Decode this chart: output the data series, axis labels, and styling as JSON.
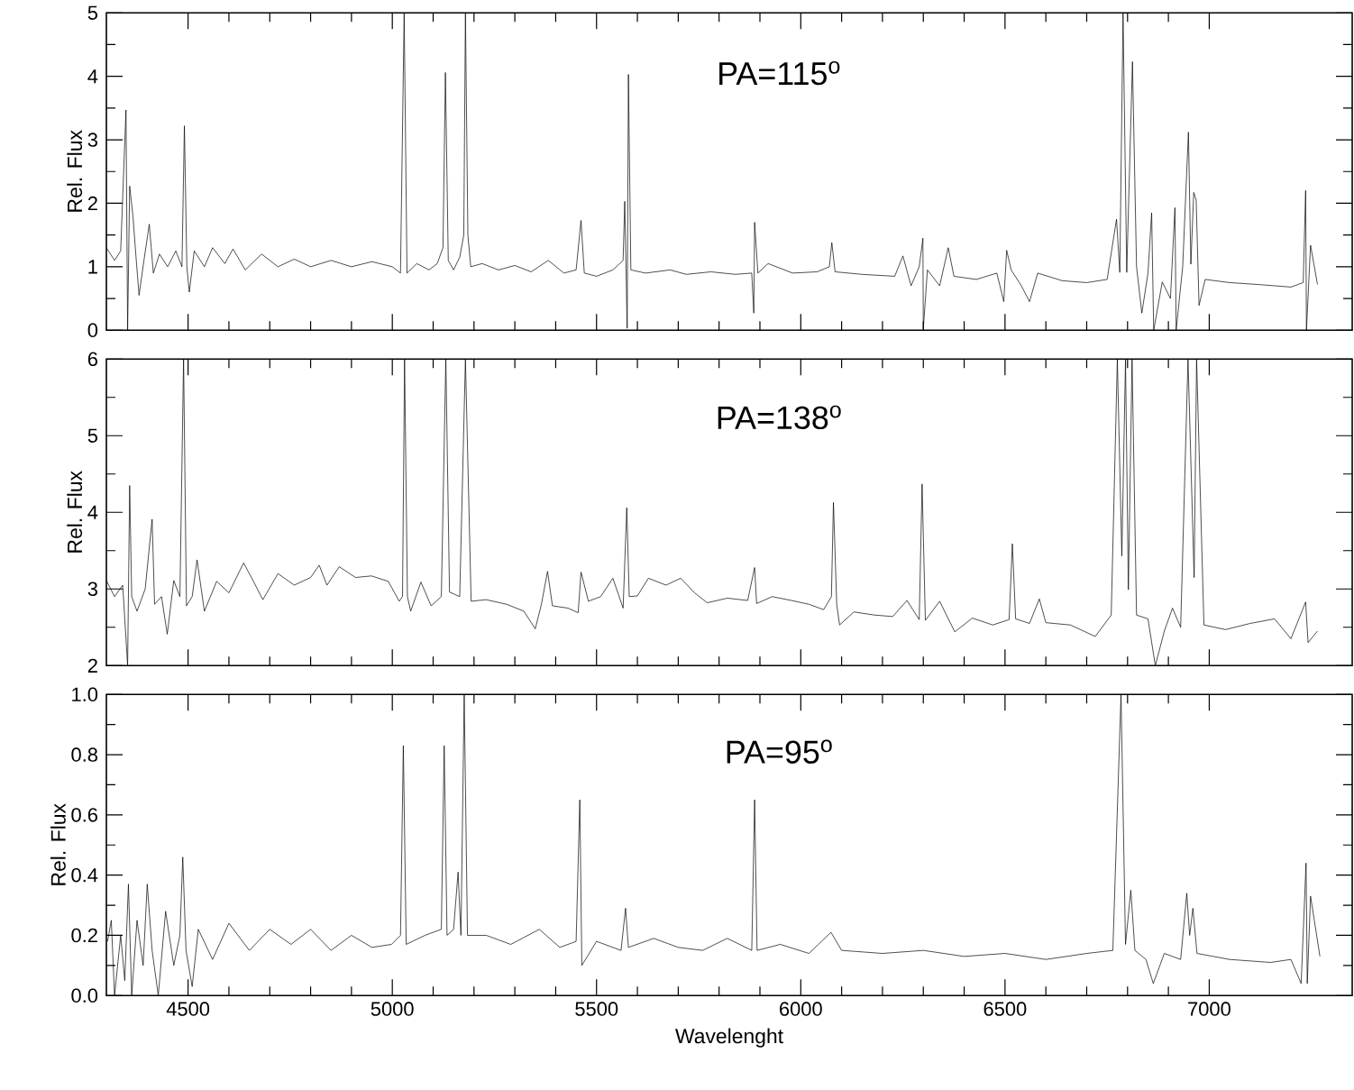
{
  "chart_data": [
    {
      "type": "line",
      "ylabel": "Rel. Flux",
      "annotations": [
        "PA=115$^{o}$"
      ],
      "color": "#000000",
      "xlim": [
        4300,
        7350
      ],
      "xticks": [
        4500,
        5000,
        5500,
        6000,
        6500,
        7000
      ],
      "ylim": [
        0,
        5
      ],
      "yticks": [
        0,
        1,
        2,
        3,
        4,
        5
      ],
      "tick_labels": "y",
      "x": [
        4300,
        4320,
        4335,
        4348,
        4352,
        4357,
        4365,
        4372,
        4380,
        4392,
        4405,
        4415,
        4430,
        4450,
        4470,
        4485,
        4491,
        4497,
        4503,
        4515,
        4540,
        4560,
        4590,
        4610,
        4640,
        4680,
        4720,
        4760,
        4800,
        4850,
        4900,
        4950,
        5000,
        5020,
        5029,
        5036,
        5060,
        5090,
        5110,
        5124,
        5130,
        5137,
        5150,
        5165,
        5175,
        5179,
        5185,
        5192,
        5220,
        5260,
        5300,
        5340,
        5382,
        5420,
        5450,
        5462,
        5470,
        5500,
        5540,
        5565,
        5569,
        5575,
        5578,
        5584,
        5620,
        5680,
        5720,
        5780,
        5840,
        5880,
        5885,
        5887,
        5895,
        5920,
        5980,
        6040,
        6070,
        6076,
        6084,
        6150,
        6230,
        6250,
        6270,
        6290,
        6299,
        6300,
        6310,
        6340,
        6361,
        6375,
        6430,
        6480,
        6497,
        6504,
        6515,
        6540,
        6560,
        6580,
        6640,
        6700,
        6750,
        6773,
        6781,
        6789,
        6798,
        6812,
        6822,
        6835,
        6850,
        6859,
        6864,
        6885,
        6905,
        6916,
        6919,
        6935,
        6949,
        6955,
        6962,
        6968,
        6975,
        6990,
        7050,
        7120,
        7200,
        7230,
        7236,
        7238,
        7248,
        7265
      ],
      "values": [
        1.3,
        1.1,
        1.25,
        3.47,
        0.0,
        2.27,
        1.8,
        1.2,
        0.55,
        1.1,
        1.67,
        0.9,
        1.2,
        1.0,
        1.25,
        1.0,
        3.22,
        1.0,
        0.6,
        1.25,
        1.0,
        1.3,
        1.05,
        1.28,
        0.95,
        1.2,
        1.0,
        1.12,
        1.0,
        1.1,
        1.0,
        1.08,
        1.0,
        0.9,
        5.0,
        0.9,
        1.05,
        0.95,
        1.05,
        1.3,
        4.06,
        1.1,
        0.95,
        1.15,
        1.5,
        5.0,
        1.5,
        1.0,
        1.05,
        0.95,
        1.02,
        0.92,
        1.1,
        0.9,
        0.95,
        1.73,
        0.9,
        0.85,
        0.95,
        1.1,
        2.03,
        0.03,
        4.03,
        0.95,
        0.9,
        0.95,
        0.88,
        0.92,
        0.88,
        0.9,
        0.27,
        1.7,
        0.9,
        1.05,
        0.9,
        0.92,
        1.0,
        1.38,
        0.92,
        0.88,
        0.85,
        1.17,
        0.7,
        1.0,
        1.45,
        0.02,
        0.95,
        0.7,
        1.3,
        0.85,
        0.8,
        0.9,
        0.45,
        1.26,
        0.95,
        0.7,
        0.45,
        0.9,
        0.78,
        0.75,
        0.8,
        1.75,
        0.91,
        5.0,
        0.91,
        4.23,
        1.0,
        0.27,
        0.9,
        1.85,
        0.0,
        0.76,
        0.5,
        1.93,
        0.0,
        1.0,
        3.12,
        1.04,
        2.17,
        2.05,
        0.39,
        0.8,
        0.75,
        0.72,
        0.68,
        0.75,
        2.2,
        0.0,
        1.34,
        0.72
      ]
    },
    {
      "type": "line",
      "ylabel": "Rel. Flux",
      "annotations": [
        "PA=138$^{o}$"
      ],
      "color": "#000000",
      "xlim": [
        4300,
        7350
      ],
      "xticks": [
        4500,
        5000,
        5500,
        6000,
        6500,
        7000
      ],
      "ylim": [
        2,
        6
      ],
      "yticks": [
        2,
        3,
        4,
        5,
        6
      ],
      "tick_labels": "y",
      "x": [
        4300,
        4320,
        4340,
        4352,
        4357,
        4362,
        4375,
        4395,
        4412,
        4418,
        4435,
        4449,
        4465,
        4480,
        4489,
        4496,
        4510,
        4522,
        4540,
        4570,
        4600,
        4636,
        4660,
        4683,
        4720,
        4760,
        4800,
        4821,
        4840,
        4870,
        4910,
        4949,
        4990,
        5017,
        5025,
        5030,
        5037,
        5045,
        5070,
        5095,
        5120,
        5131,
        5140,
        5165,
        5179,
        5193,
        5230,
        5280,
        5322,
        5350,
        5365,
        5380,
        5392,
        5430,
        5455,
        5462,
        5480,
        5510,
        5540,
        5565,
        5574,
        5580,
        5600,
        5627,
        5670,
        5706,
        5740,
        5771,
        5820,
        5870,
        5887,
        5892,
        5930,
        5977,
        6020,
        6056,
        6075,
        6080,
        6088,
        6095,
        6130,
        6180,
        6225,
        6260,
        6290,
        6297,
        6305,
        6340,
        6377,
        6420,
        6470,
        6510,
        6518,
        6526,
        6560,
        6584,
        6600,
        6660,
        6721,
        6760,
        6775,
        6786,
        6795,
        6802,
        6811,
        6822,
        6850,
        6868,
        6890,
        6910,
        6930,
        6948,
        6963,
        6969,
        6987,
        7040,
        7100,
        7160,
        7200,
        7236,
        7242,
        7265
      ],
      "values": [
        3.11,
        2.9,
        3.05,
        2.0,
        4.35,
        2.9,
        2.71,
        3.0,
        3.91,
        2.8,
        2.9,
        2.41,
        3.11,
        2.9,
        6.0,
        2.78,
        2.9,
        3.38,
        2.71,
        3.1,
        2.95,
        3.34,
        3.1,
        2.86,
        3.2,
        3.05,
        3.15,
        3.31,
        3.05,
        3.29,
        3.15,
        3.17,
        3.1,
        2.84,
        2.9,
        6.0,
        2.9,
        2.71,
        3.09,
        2.78,
        2.9,
        6.0,
        2.96,
        2.9,
        6.0,
        2.84,
        2.86,
        2.8,
        2.71,
        2.48,
        2.8,
        3.23,
        2.78,
        2.75,
        2.69,
        3.22,
        2.84,
        2.9,
        3.14,
        2.75,
        4.06,
        2.9,
        2.91,
        3.14,
        3.05,
        3.14,
        2.95,
        2.82,
        2.88,
        2.85,
        3.28,
        2.81,
        2.9,
        2.85,
        2.8,
        2.73,
        2.9,
        4.13,
        2.8,
        2.53,
        2.7,
        2.66,
        2.64,
        2.85,
        2.6,
        4.37,
        2.59,
        2.84,
        2.44,
        2.62,
        2.53,
        2.6,
        3.59,
        2.61,
        2.55,
        2.87,
        2.56,
        2.53,
        2.38,
        2.66,
        6.0,
        3.43,
        6.0,
        2.99,
        6.0,
        2.66,
        2.61,
        2.0,
        2.45,
        2.75,
        2.5,
        6.0,
        3.15,
        6.0,
        2.53,
        2.47,
        2.55,
        2.61,
        2.35,
        2.83,
        2.3,
        2.45
      ]
    },
    {
      "type": "line",
      "xlabel": "Wavelenght",
      "ylabel": "Rel. Flux",
      "annotations": [
        "PA=95$^{o}$"
      ],
      "color": "#000000",
      "xlim": [
        4300,
        7350
      ],
      "xticks": [
        4500,
        5000,
        5500,
        6000,
        6500,
        7000
      ],
      "ylim": [
        0,
        1
      ],
      "yticks": [
        {
          "value": 0,
          "label": "0.0"
        },
        0.2,
        0.4,
        0.6,
        0.8,
        {
          "value": 1,
          "label": "1.0"
        }
      ],
      "x": [
        4303,
        4312,
        4320,
        4335,
        4345,
        4354,
        4362,
        4375,
        4390,
        4400,
        4412,
        4427,
        4445,
        4465,
        4480,
        4487,
        4495,
        4510,
        4525,
        4560,
        4600,
        4650,
        4700,
        4752,
        4800,
        4850,
        4900,
        4950,
        4998,
        5020,
        5027,
        5034,
        5080,
        5120,
        5127,
        5134,
        5150,
        5161,
        5168,
        5176,
        5184,
        5230,
        5290,
        5360,
        5410,
        5450,
        5459,
        5464,
        5500,
        5560,
        5571,
        5578,
        5640,
        5700,
        5760,
        5820,
        5880,
        5887,
        5893,
        5950,
        6020,
        6074,
        6100,
        6200,
        6300,
        6400,
        6500,
        6600,
        6700,
        6764,
        6784,
        6795,
        6808,
        6818,
        6845,
        6863,
        6890,
        6930,
        6945,
        6952,
        6960,
        6970,
        7050,
        7150,
        7200,
        7225,
        7237,
        7240,
        7248,
        7271
      ],
      "values": [
        0.18,
        0.25,
        0.0,
        0.2,
        0.05,
        0.37,
        0.0,
        0.25,
        0.1,
        0.37,
        0.15,
        0.0,
        0.28,
        0.1,
        0.2,
        0.46,
        0.15,
        0.03,
        0.22,
        0.12,
        0.24,
        0.15,
        0.22,
        0.17,
        0.22,
        0.15,
        0.2,
        0.16,
        0.17,
        0.2,
        0.83,
        0.17,
        0.2,
        0.22,
        0.83,
        0.2,
        0.22,
        0.41,
        0.2,
        1.0,
        0.2,
        0.2,
        0.17,
        0.22,
        0.16,
        0.18,
        0.65,
        0.1,
        0.18,
        0.15,
        0.29,
        0.16,
        0.19,
        0.16,
        0.15,
        0.19,
        0.15,
        0.65,
        0.15,
        0.17,
        0.14,
        0.21,
        0.15,
        0.14,
        0.15,
        0.13,
        0.14,
        0.12,
        0.14,
        0.15,
        1.0,
        0.17,
        0.35,
        0.15,
        0.12,
        0.04,
        0.14,
        0.12,
        0.34,
        0.2,
        0.29,
        0.14,
        0.12,
        0.11,
        0.12,
        0.04,
        0.44,
        0.04,
        0.33,
        0.13
      ]
    }
  ]
}
